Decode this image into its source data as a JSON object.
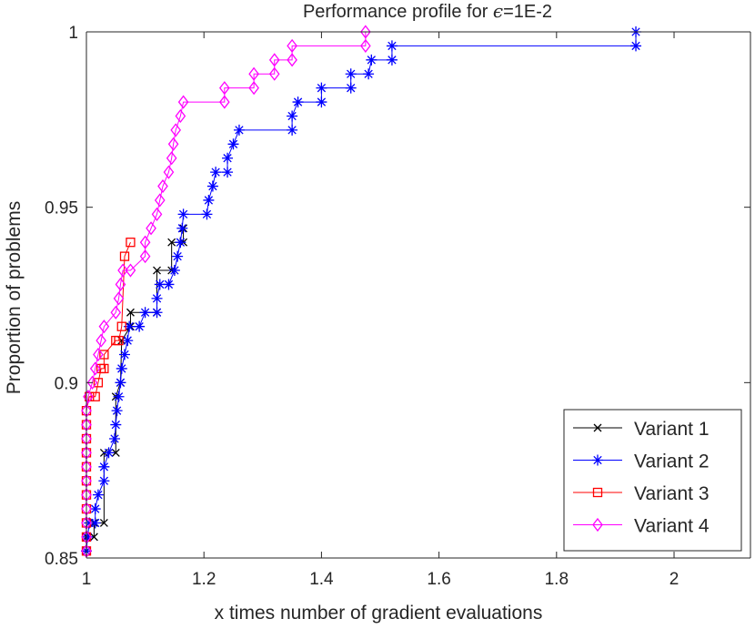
{
  "chart_data": {
    "type": "line",
    "title_prefix": "Performance profile for ",
    "title_symbol": "ϵ",
    "title_suffix": "=1E-2",
    "xlabel": "x times number of gradient evaluations",
    "ylabel": "Proportion of problems",
    "xlim": [
      1,
      2.13
    ],
    "ylim": [
      0.85,
      1.0
    ],
    "xticks": [
      1,
      1.2,
      1.4,
      1.6,
      1.8,
      2
    ],
    "xtick_labels": [
      "1",
      "1.2",
      "1.4",
      "1.6",
      "1.8",
      "2"
    ],
    "yticks": [
      0.85,
      0.9,
      0.95,
      1
    ],
    "ytick_labels": [
      "0.85",
      "0.9",
      "0.95",
      "1"
    ],
    "legend_position": "bottom-right",
    "series": [
      {
        "name": "Variant 1",
        "color": "#000000",
        "marker": "x",
        "points": [
          [
            1.0,
            0.852
          ],
          [
            1.0,
            0.856
          ],
          [
            1.013,
            0.856
          ],
          [
            1.013,
            0.86
          ],
          [
            1.03,
            0.86
          ],
          [
            1.03,
            0.88
          ],
          [
            1.05,
            0.88
          ],
          [
            1.05,
            0.896
          ],
          [
            1.058,
            0.9
          ],
          [
            1.06,
            0.912
          ],
          [
            1.075,
            0.916
          ],
          [
            1.075,
            0.92
          ],
          [
            1.12,
            0.92
          ],
          [
            1.12,
            0.932
          ],
          [
            1.145,
            0.932
          ],
          [
            1.145,
            0.94
          ],
          [
            1.165,
            0.94
          ],
          [
            1.165,
            0.944
          ]
        ]
      },
      {
        "name": "Variant 2",
        "color": "#0000ff",
        "marker": "*",
        "points": [
          [
            1.0,
            0.852
          ],
          [
            1.002,
            0.856
          ],
          [
            1.005,
            0.86
          ],
          [
            1.015,
            0.86
          ],
          [
            1.015,
            0.864
          ],
          [
            1.02,
            0.868
          ],
          [
            1.03,
            0.872
          ],
          [
            1.03,
            0.876
          ],
          [
            1.038,
            0.88
          ],
          [
            1.048,
            0.884
          ],
          [
            1.05,
            0.888
          ],
          [
            1.052,
            0.892
          ],
          [
            1.055,
            0.896
          ],
          [
            1.058,
            0.9
          ],
          [
            1.06,
            0.904
          ],
          [
            1.065,
            0.908
          ],
          [
            1.07,
            0.912
          ],
          [
            1.073,
            0.916
          ],
          [
            1.09,
            0.916
          ],
          [
            1.1,
            0.92
          ],
          [
            1.12,
            0.92
          ],
          [
            1.12,
            0.924
          ],
          [
            1.125,
            0.928
          ],
          [
            1.14,
            0.928
          ],
          [
            1.15,
            0.932
          ],
          [
            1.155,
            0.936
          ],
          [
            1.16,
            0.94
          ],
          [
            1.163,
            0.944
          ],
          [
            1.165,
            0.948
          ],
          [
            1.205,
            0.948
          ],
          [
            1.208,
            0.952
          ],
          [
            1.215,
            0.956
          ],
          [
            1.22,
            0.96
          ],
          [
            1.24,
            0.96
          ],
          [
            1.24,
            0.964
          ],
          [
            1.25,
            0.968
          ],
          [
            1.26,
            0.972
          ],
          [
            1.35,
            0.972
          ],
          [
            1.35,
            0.976
          ],
          [
            1.36,
            0.98
          ],
          [
            1.4,
            0.98
          ],
          [
            1.4,
            0.984
          ],
          [
            1.45,
            0.984
          ],
          [
            1.45,
            0.988
          ],
          [
            1.48,
            0.988
          ],
          [
            1.485,
            0.992
          ],
          [
            1.52,
            0.992
          ],
          [
            1.52,
            0.996
          ],
          [
            1.935,
            0.996
          ],
          [
            1.935,
            1.0
          ]
        ]
      },
      {
        "name": "Variant 3",
        "color": "#ff0000",
        "marker": "square",
        "points": [
          [
            1.0,
            0.852
          ],
          [
            1.0,
            0.856
          ],
          [
            1.0,
            0.86
          ],
          [
            1.0,
            0.864
          ],
          [
            1.0,
            0.868
          ],
          [
            1.0,
            0.872
          ],
          [
            1.0,
            0.876
          ],
          [
            1.0,
            0.88
          ],
          [
            1.0,
            0.884
          ],
          [
            1.0,
            0.888
          ],
          [
            1.0,
            0.892
          ],
          [
            1.005,
            0.896
          ],
          [
            1.015,
            0.896
          ],
          [
            1.02,
            0.9
          ],
          [
            1.025,
            0.904
          ],
          [
            1.03,
            0.904
          ],
          [
            1.03,
            0.908
          ],
          [
            1.05,
            0.912
          ],
          [
            1.055,
            0.912
          ],
          [
            1.06,
            0.916
          ],
          [
            1.065,
            0.936
          ],
          [
            1.075,
            0.94
          ]
        ]
      },
      {
        "name": "Variant 4",
        "color": "#ff00ff",
        "marker": "diamond",
        "points": [
          [
            1.0,
            0.852
          ],
          [
            1.0,
            0.856
          ],
          [
            1.0,
            0.86
          ],
          [
            1.0,
            0.864
          ],
          [
            1.0,
            0.868
          ],
          [
            1.0,
            0.872
          ],
          [
            1.0,
            0.876
          ],
          [
            1.0,
            0.88
          ],
          [
            1.0,
            0.884
          ],
          [
            1.0,
            0.888
          ],
          [
            1.0,
            0.892
          ],
          [
            1.003,
            0.896
          ],
          [
            1.01,
            0.9
          ],
          [
            1.015,
            0.904
          ],
          [
            1.02,
            0.908
          ],
          [
            1.025,
            0.912
          ],
          [
            1.03,
            0.916
          ],
          [
            1.05,
            0.92
          ],
          [
            1.055,
            0.924
          ],
          [
            1.058,
            0.928
          ],
          [
            1.062,
            0.932
          ],
          [
            1.075,
            0.932
          ],
          [
            1.1,
            0.936
          ],
          [
            1.1,
            0.94
          ],
          [
            1.11,
            0.944
          ],
          [
            1.12,
            0.948
          ],
          [
            1.125,
            0.952
          ],
          [
            1.13,
            0.956
          ],
          [
            1.14,
            0.96
          ],
          [
            1.145,
            0.964
          ],
          [
            1.148,
            0.968
          ],
          [
            1.152,
            0.972
          ],
          [
            1.16,
            0.976
          ],
          [
            1.165,
            0.98
          ],
          [
            1.235,
            0.98
          ],
          [
            1.235,
            0.984
          ],
          [
            1.285,
            0.984
          ],
          [
            1.285,
            0.988
          ],
          [
            1.32,
            0.988
          ],
          [
            1.32,
            0.992
          ],
          [
            1.35,
            0.992
          ],
          [
            1.35,
            0.996
          ],
          [
            1.475,
            0.996
          ],
          [
            1.475,
            1.0
          ]
        ]
      }
    ]
  }
}
